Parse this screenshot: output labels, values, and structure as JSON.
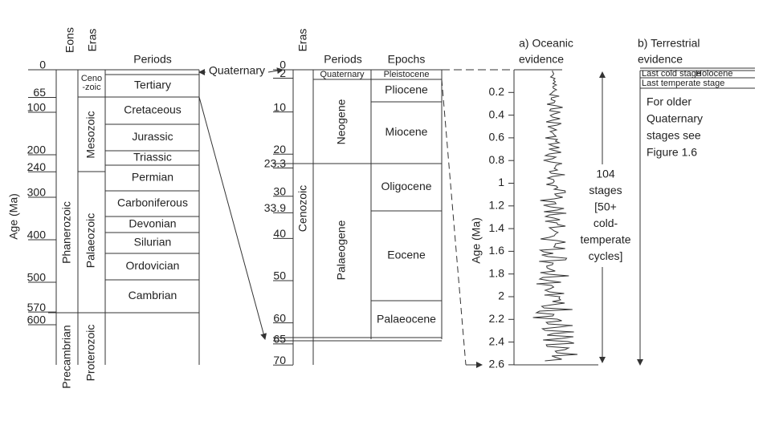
{
  "panel_geologic": {
    "headers": {
      "eons": "Eons",
      "eras": "Eras",
      "periods": "Periods"
    },
    "axis_title": "Age (Ma)",
    "ages": [
      0,
      65,
      100,
      200,
      240,
      300,
      400,
      500,
      570,
      600
    ],
    "eons": [
      "Phanerozoic",
      "Precambrian"
    ],
    "eras": [
      [
        "Ceno",
        "-zoic"
      ],
      "Mesozoic",
      "Palaeozoic",
      "Proterozoic"
    ],
    "periods": [
      "Tertiary",
      "Cretaceous",
      "Jurassic",
      "Triassic",
      "Permian",
      "Carboniferous",
      "Devonian",
      "Silurian",
      "Ordovician",
      "Cambrian"
    ]
  },
  "quaternary_link": "Quaternary",
  "panel_cenozoic": {
    "headers": {
      "eras": "Eras",
      "periods": "Periods",
      "epochs": "Epochs"
    },
    "ages": [
      0,
      2,
      10,
      20,
      23.3,
      30,
      33.9,
      40,
      50,
      60,
      65,
      70
    ],
    "era": "Cenozoic",
    "periods": [
      "Quaternary",
      "Neogene",
      "Palaeogene"
    ],
    "epochs": [
      "Pleistocene",
      "Pliocene",
      "Miocene",
      "Oligocene",
      "Eocene",
      "Palaeocene"
    ]
  },
  "panel_oceanic": {
    "title": [
      "a) Oceanic",
      "evidence"
    ],
    "axis_title": "Age (Ma)",
    "ages": [
      0.2,
      0.4,
      0.6,
      0.8,
      1.0,
      1.2,
      1.4,
      1.6,
      1.8,
      2.0,
      2.2,
      2.4,
      2.6
    ],
    "stage_note": [
      "104",
      "stages",
      "[50+",
      "cold-",
      "temperate",
      "cycles]"
    ]
  },
  "panel_terrestrial": {
    "title": [
      "b) Terrestrial",
      "evidence"
    ],
    "last_cold_stage": "Last cold stage",
    "holocene": "Holocene",
    "last_temperate_stage": "Last temperate stage",
    "note": [
      "For older",
      "Quaternary",
      "stages see",
      "Figure 1.6"
    ]
  }
}
